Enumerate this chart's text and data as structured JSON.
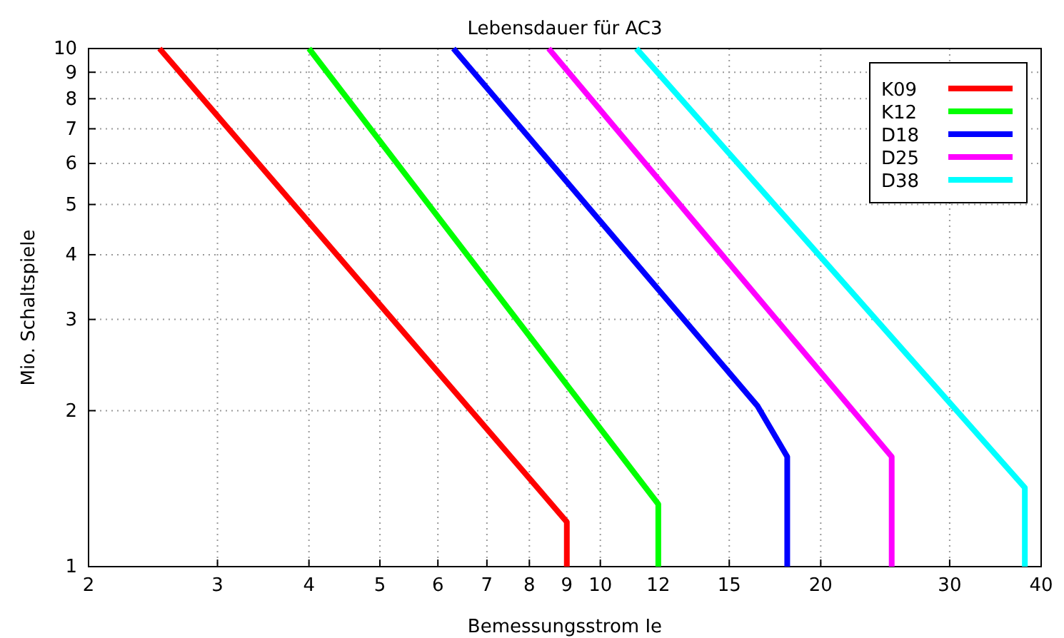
{
  "chart_data": {
    "type": "line",
    "title": "Lebensdauer für AC3",
    "xlabel": "Bemessungsstrom Ie",
    "ylabel": "Mio. Schaltspiele",
    "log": "xy",
    "grid": true,
    "legend": "top right",
    "line_style": "solid",
    "marker": "none",
    "xlim": [
      2,
      40
    ],
    "xticks": [
      2,
      3,
      4,
      5,
      6,
      7,
      8,
      9,
      10,
      12,
      15,
      20,
      30,
      40
    ],
    "ylim": [
      1,
      10
    ],
    "yticks": [
      1,
      2,
      3,
      4,
      5,
      6,
      7,
      8,
      9,
      10
    ],
    "series": [
      {
        "name": "K09",
        "color": "#ff0000",
        "x": [
          2.5,
          9,
          9
        ],
        "values": [
          10,
          1.22,
          1
        ]
      },
      {
        "name": "K12",
        "color": "#00ff00",
        "x": [
          4,
          12,
          12
        ],
        "values": [
          10,
          1.32,
          1
        ]
      },
      {
        "name": "D18",
        "color": "#0000ff",
        "x": [
          6.3,
          16.4,
          18,
          18
        ],
        "values": [
          10,
          2.04,
          1.63,
          1
        ]
      },
      {
        "name": "D25",
        "color": "#ff00ff",
        "x": [
          8.5,
          25,
          25
        ],
        "values": [
          10,
          1.63,
          1
        ]
      },
      {
        "name": "D38",
        "color": "#00ffff",
        "x": [
          11.2,
          38,
          38
        ],
        "values": [
          10,
          1.42,
          1
        ]
      }
    ]
  }
}
